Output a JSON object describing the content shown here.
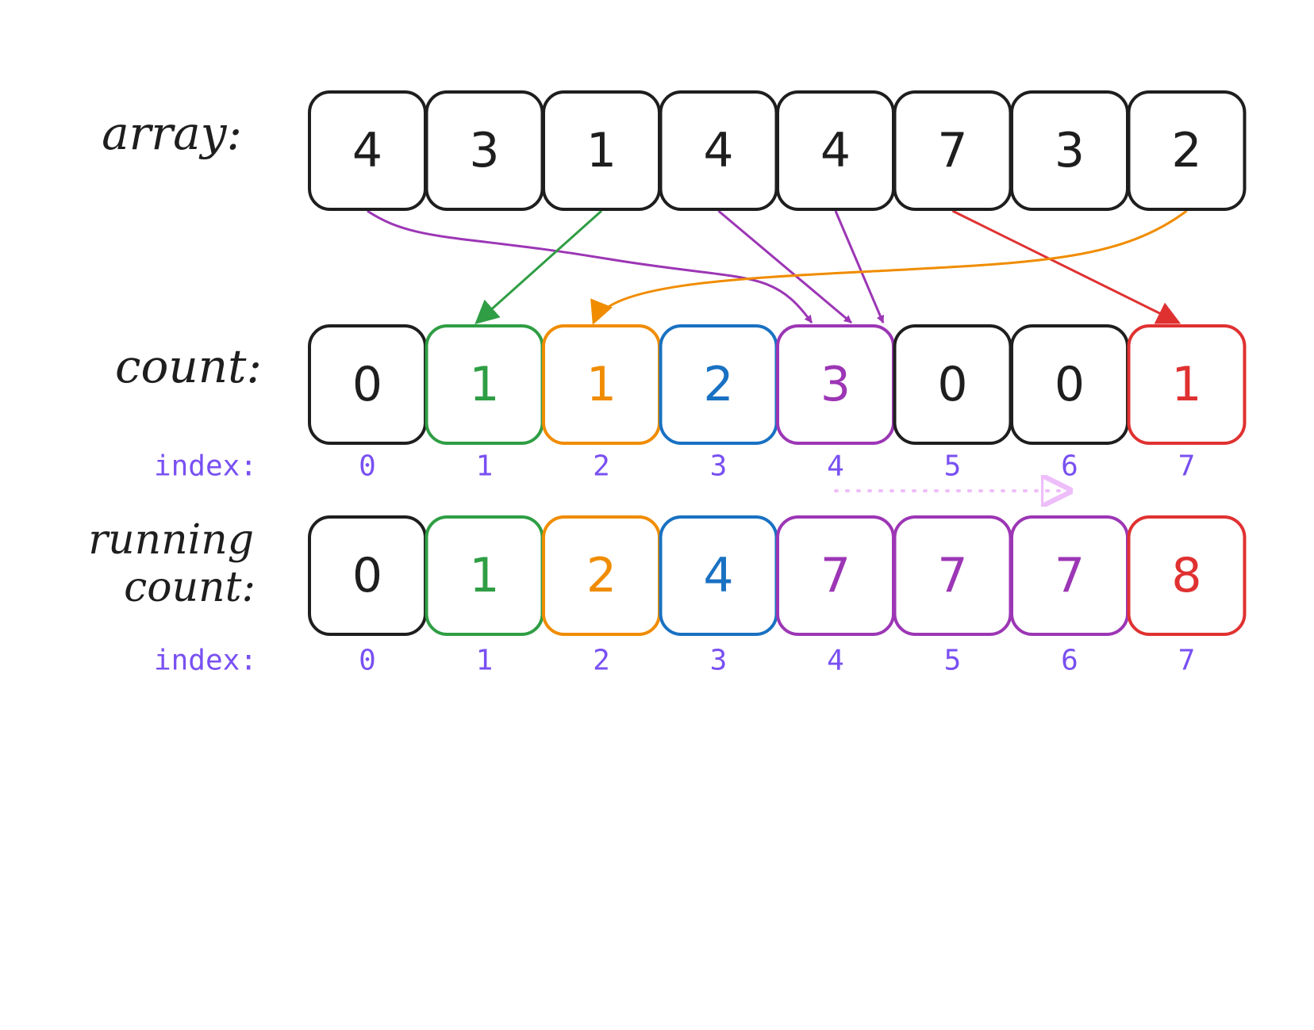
{
  "colors": {
    "black": "#1e1e1e",
    "green": "#2f9e44",
    "orange": "#f08c00",
    "blue": "#1971c2",
    "purple": "#9c36b5",
    "red": "#e03131",
    "index": "#7950f2",
    "dotted": "#eebefa"
  },
  "array": {
    "label": "array:",
    "values": [
      "4",
      "3",
      "1",
      "4",
      "4",
      "7",
      "3",
      "2"
    ]
  },
  "count": {
    "label": "count:",
    "values": [
      "0",
      "1",
      "1",
      "2",
      "3",
      "0",
      "0",
      "1"
    ],
    "colors": [
      "black",
      "green",
      "orange",
      "blue",
      "purple",
      "black",
      "black",
      "red"
    ]
  },
  "running_count": {
    "label_line1": "running",
    "label_line2": "count:",
    "values": [
      "0",
      "1",
      "2",
      "4",
      "7",
      "7",
      "7",
      "8"
    ],
    "colors": [
      "black",
      "green",
      "orange",
      "blue",
      "purple",
      "purple",
      "purple",
      "red"
    ]
  },
  "index_label": "index:",
  "indices": [
    "0",
    "1",
    "2",
    "3",
    "4",
    "5",
    "6",
    "7"
  ],
  "arrows": [
    {
      "from": 0,
      "to": 4,
      "color": "purple"
    },
    {
      "from": 2,
      "to": 1,
      "color": "green"
    },
    {
      "from": 3,
      "to": 4,
      "color": "purple"
    },
    {
      "from": 4,
      "to": 4,
      "color": "purple"
    },
    {
      "from": 5,
      "to": 7,
      "color": "red"
    },
    {
      "from": 7,
      "to": 2,
      "color": "orange"
    }
  ],
  "carry_arrow": {
    "from": 4,
    "to": 6,
    "color": "dotted",
    "style": "dotted"
  }
}
